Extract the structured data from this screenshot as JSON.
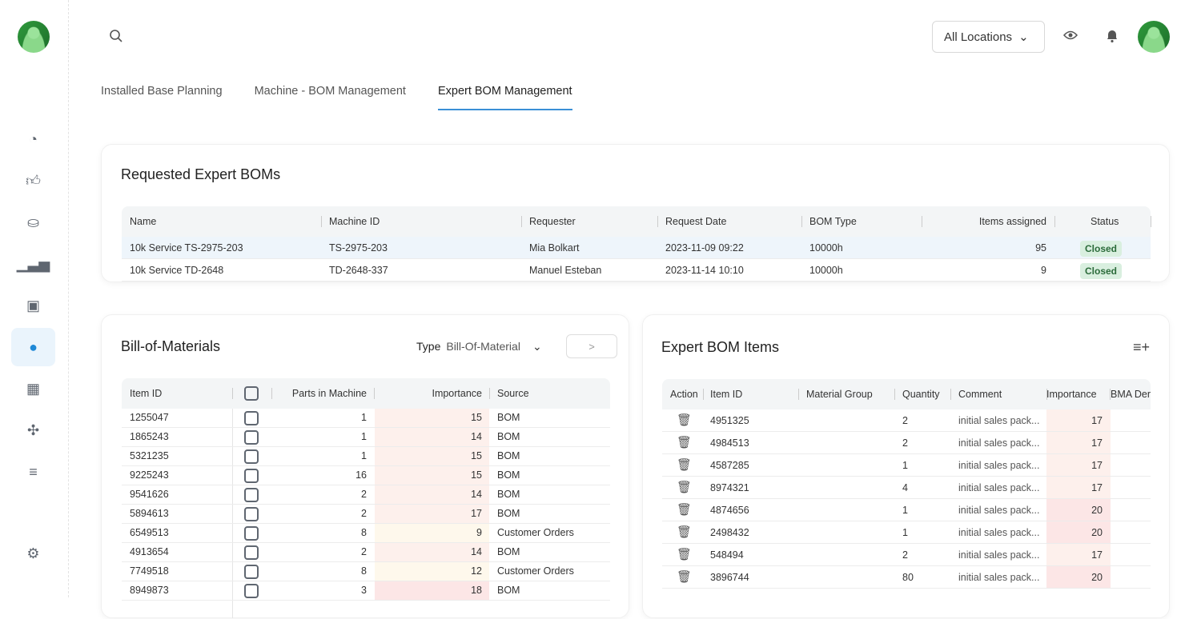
{
  "header": {
    "location_select": "All Locations"
  },
  "tabs": [
    "Installed Base Planning",
    "Machine - BOM Management",
    "Expert BOM Management"
  ],
  "requested": {
    "title": "Requested Expert BOMs",
    "columns": [
      "Name",
      "Machine ID",
      "Requester",
      "Request Date",
      "BOM Type",
      "Items assigned",
      "Status"
    ],
    "rows": [
      [
        "10k Service TS-2975-203",
        "TS-2975-203",
        "Mia Bolkart",
        "2023-11-09 09:22",
        "10000h",
        "95",
        "Closed"
      ],
      [
        "10k Service TD-2648",
        "TD-2648-337",
        "Manuel Esteban",
        "2023-11-14 10:10",
        "10000h",
        "9",
        "Closed"
      ]
    ]
  },
  "bom": {
    "title": "Bill-of-Materials",
    "type_label": "Type",
    "type_value": "Bill-Of-Material",
    "next_button": ">",
    "columns": [
      "Item ID",
      "Parts in Machine",
      "Importance",
      "Source"
    ],
    "rows": [
      [
        "1255047",
        "1",
        "15",
        "BOM"
      ],
      [
        "1865243",
        "1",
        "14",
        "BOM"
      ],
      [
        "5321235",
        "1",
        "15",
        "BOM"
      ],
      [
        "9225243",
        "16",
        "15",
        "BOM"
      ],
      [
        "9541626",
        "2",
        "14",
        "BOM"
      ],
      [
        "5894613",
        "2",
        "17",
        "BOM"
      ],
      [
        "6549513",
        "8",
        "9",
        "Customer Orders"
      ],
      [
        "4913654",
        "2",
        "14",
        "BOM"
      ],
      [
        "7749518",
        "8",
        "12",
        "Customer Orders"
      ],
      [
        "8949873",
        "3",
        "18",
        "BOM"
      ]
    ]
  },
  "expert": {
    "title": "Expert BOM Items",
    "columns": [
      "Action",
      "Item ID",
      "Material Group",
      "Quantity",
      "Comment",
      "Importance",
      "BMA Der"
    ],
    "rows": [
      [
        "4951325",
        "",
        "2",
        "initial sales pack...",
        "17"
      ],
      [
        "4984513",
        "",
        "2",
        "initial sales pack...",
        "17"
      ],
      [
        "4587285",
        "",
        "1",
        "initial sales pack...",
        "17"
      ],
      [
        "8974321",
        "",
        "4",
        "initial sales pack...",
        "17"
      ],
      [
        "4874656",
        "",
        "1",
        "initial sales pack...",
        "20"
      ],
      [
        "2498432",
        "",
        "1",
        "initial sales pack...",
        "20"
      ],
      [
        "548494",
        "",
        "2",
        "initial sales pack...",
        "17"
      ],
      [
        "3896744",
        "",
        "80",
        "initial sales pack...",
        "20"
      ]
    ]
  },
  "colors": {
    "accent": "#3a8fd6",
    "closed_bg": "#d9efdf",
    "imp_low": "#fef8ec",
    "imp_mid": "#fdf0ec",
    "imp_high": "#fce6e6"
  }
}
